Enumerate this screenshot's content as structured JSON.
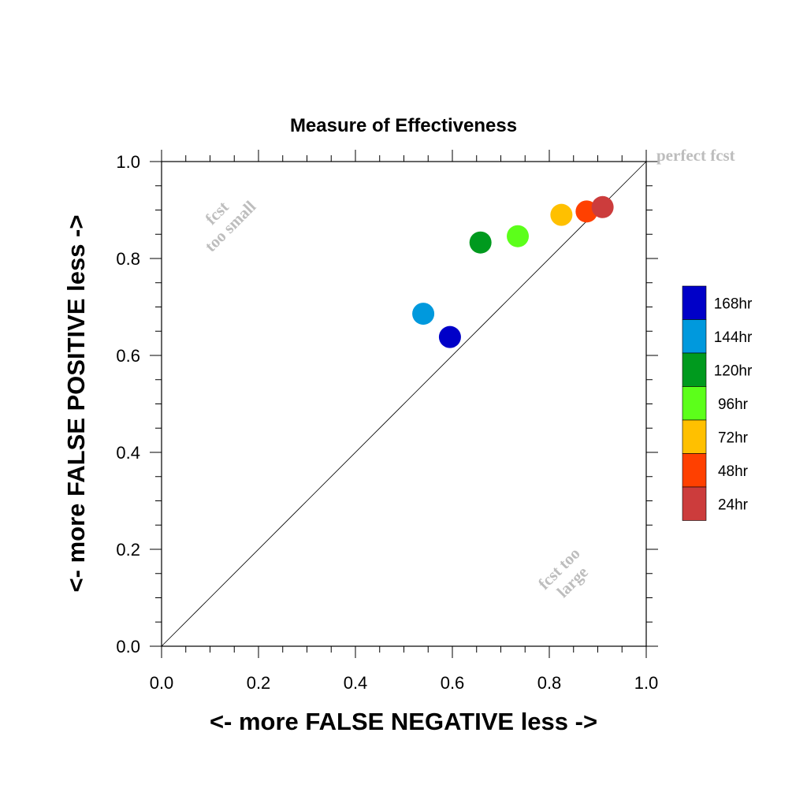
{
  "chart_data": {
    "type": "scatter",
    "title": "Measure of Effectiveness",
    "xlabel": "<- more   FALSE NEGATIVE   less ->",
    "ylabel": "<- more   FALSE POSITIVE   less ->",
    "xlim": [
      0.0,
      1.0
    ],
    "ylim": [
      0.0,
      1.0
    ],
    "xticks": [
      "0.0",
      "0.2",
      "0.4",
      "0.6",
      "0.8",
      "1.0"
    ],
    "yticks": [
      "0.0",
      "0.2",
      "0.4",
      "0.6",
      "0.8",
      "1.0"
    ],
    "grid": false,
    "diagonal_line": true,
    "annotations": {
      "perfect": "perfect fcst",
      "small_line1": "fcst",
      "small_line2": "too small",
      "large_line1": "fcst too",
      "large_line2": "large"
    },
    "legend_position": "right",
    "series": [
      {
        "name": "168hr",
        "color": "#0000c8",
        "x": 0.595,
        "y": 0.638
      },
      {
        "name": "144hr",
        "color": "#0099dd",
        "x": 0.54,
        "y": 0.686
      },
      {
        "name": "120hr",
        "color": "#009a1e",
        "x": 0.658,
        "y": 0.833
      },
      {
        "name": "96hr",
        "color": "#5cff1a",
        "x": 0.735,
        "y": 0.846
      },
      {
        "name": "72hr",
        "color": "#ffc000",
        "x": 0.825,
        "y": 0.89
      },
      {
        "name": "48hr",
        "color": "#ff4000",
        "x": 0.877,
        "y": 0.897
      },
      {
        "name": "24hr",
        "color": "#cc3c3c",
        "x": 0.91,
        "y": 0.906
      }
    ]
  }
}
